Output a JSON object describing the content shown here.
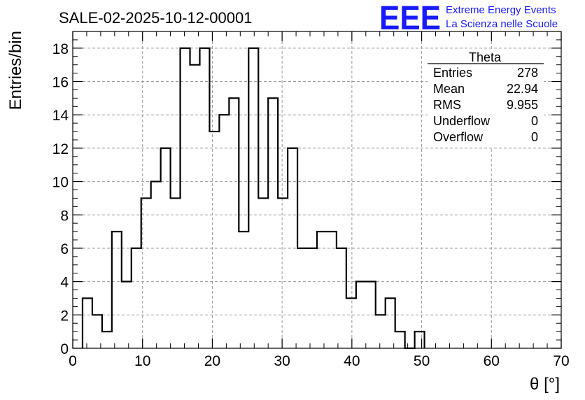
{
  "header": {
    "run_title": "SALE-02-2025-10-12-00001",
    "logo_text": "EEE",
    "logo_line1": "Extreme Energy Events",
    "logo_line2": "La Scienza nelle Scuole"
  },
  "stats_box": {
    "title": "Theta",
    "rows": [
      {
        "label": "Entries",
        "value": "278"
      },
      {
        "label": "Mean",
        "value": "22.94"
      },
      {
        "label": "RMS",
        "value": "9.955"
      },
      {
        "label": "Underflow",
        "value": "0"
      },
      {
        "label": "Overflow",
        "value": "0"
      }
    ]
  },
  "colors": {
    "logo": "#1a1aff",
    "histogram_line": "#000000",
    "grid": "#9a9a9a"
  },
  "chart_data": {
    "type": "bar",
    "style": "step-histogram",
    "xlabel": "θ [°]",
    "ylabel": "Entries/bin",
    "xlim": [
      0,
      70
    ],
    "ylim": [
      0,
      19
    ],
    "x_ticks": [
      0,
      10,
      20,
      30,
      40,
      50,
      60,
      70
    ],
    "y_ticks": [
      0,
      2,
      4,
      6,
      8,
      10,
      12,
      14,
      16,
      18
    ],
    "grid": true,
    "bin_width": 1.4,
    "bin_edges_start": 1.4,
    "values": [
      3,
      2,
      1,
      7,
      4,
      6,
      9,
      10,
      12,
      9,
      18,
      17,
      18,
      13,
      14,
      15,
      7,
      18,
      9,
      15,
      9,
      12,
      6,
      6,
      7,
      7,
      6,
      3,
      4,
      4,
      2,
      3,
      1,
      0,
      1
    ]
  }
}
